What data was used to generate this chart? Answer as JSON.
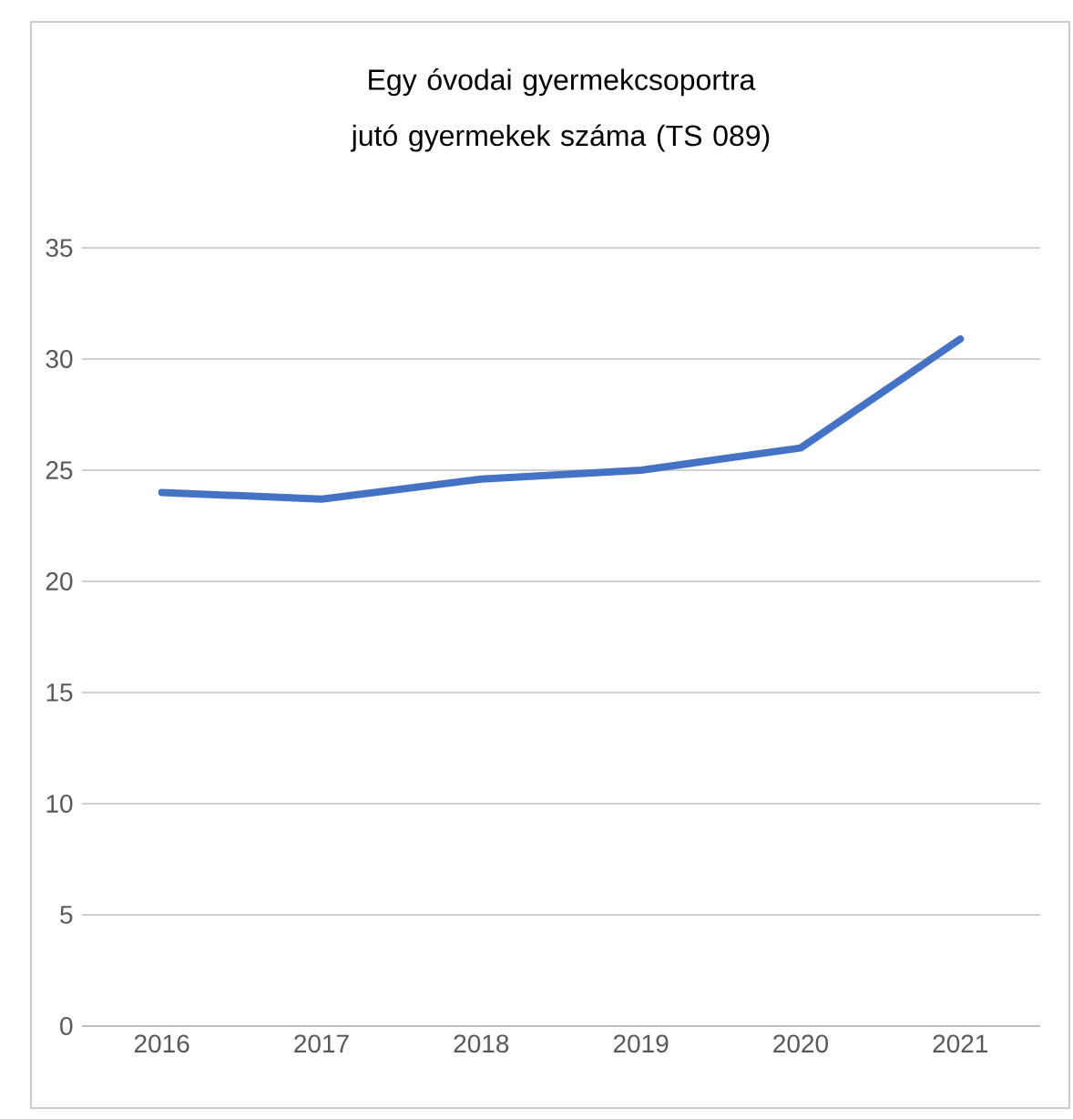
{
  "chart_data": {
    "type": "line",
    "title": "Egy óvodai gyermekcsoportra jutó gyermekek száma (TS 089)",
    "categories": [
      "2016",
      "2017",
      "2018",
      "2019",
      "2020",
      "2021"
    ],
    "series": [
      {
        "color": "#4472c4",
        "values": [
          24.0,
          23.7,
          24.6,
          25.0,
          26.0,
          30.9
        ]
      }
    ],
    "ylim": [
      0,
      35
    ],
    "yticks": [
      0,
      5,
      10,
      15,
      20,
      25,
      30,
      35
    ],
    "grid": "y",
    "marker": "none",
    "line_style": "solid"
  }
}
